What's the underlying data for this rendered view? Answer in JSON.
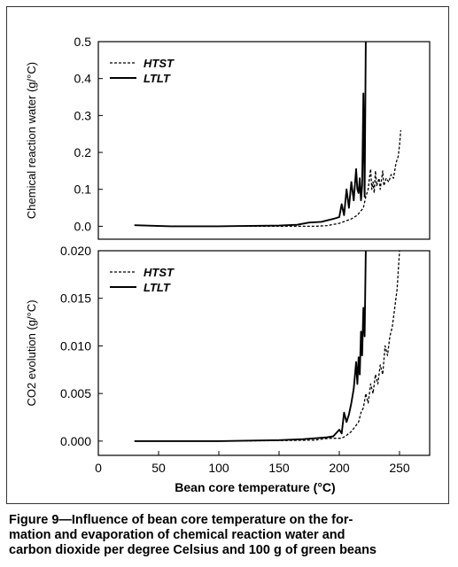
{
  "caption": {
    "line1": "Figure 9—Influence of bean core temperature on the for-",
    "line2": "mation and evaporation of chemical reaction water and",
    "line3": "carbon dioxide per degree Celsius and 100 g of green beans"
  },
  "colors": {
    "line": "#000000",
    "frame": "#333333"
  },
  "chart_data": [
    {
      "type": "line",
      "ylabel": "Chemical reaction water (g/°C)",
      "xlim": [
        0,
        275
      ],
      "ylim": [
        -0.035,
        0.5
      ],
      "yticks": [
        "0.0",
        "0.1",
        "0.2",
        "0.3",
        "0.4",
        "0.5"
      ],
      "ytick_values": [
        0.0,
        0.1,
        0.2,
        0.3,
        0.4,
        0.5
      ],
      "legend_position": "top-left",
      "series": [
        {
          "name": "HTST",
          "style": "dashed",
          "points": [
            [
              30,
              0.003
            ],
            [
              60,
              0.0
            ],
            [
              100,
              0.0
            ],
            [
              150,
              0.0
            ],
            [
              180,
              0.0
            ],
            [
              190,
              0.002
            ],
            [
              200,
              0.008
            ],
            [
              205,
              0.014
            ],
            [
              210,
              0.02
            ],
            [
              215,
              0.03
            ],
            [
              220,
              0.05
            ],
            [
              222,
              0.08
            ],
            [
              224,
              0.1
            ],
            [
              225,
              0.13
            ],
            [
              226,
              0.155
            ],
            [
              227,
              0.1
            ],
            [
              228,
              0.12
            ],
            [
              229,
              0.09
            ],
            [
              230,
              0.15
            ],
            [
              231,
              0.11
            ],
            [
              233,
              0.13
            ],
            [
              234,
              0.1
            ],
            [
              236,
              0.15
            ],
            [
              237,
              0.11
            ],
            [
              239,
              0.13
            ],
            [
              241,
              0.12
            ],
            [
              243,
              0.14
            ],
            [
              245,
              0.13
            ],
            [
              247,
              0.17
            ],
            [
              249,
              0.19
            ],
            [
              250,
              0.22
            ],
            [
              251,
              0.26
            ]
          ]
        },
        {
          "name": "LTLT",
          "style": "solid",
          "points": [
            [
              30,
              0.003
            ],
            [
              60,
              0.0
            ],
            [
              100,
              0.0
            ],
            [
              150,
              0.002
            ],
            [
              165,
              0.004
            ],
            [
              175,
              0.01
            ],
            [
              185,
              0.012
            ],
            [
              195,
              0.02
            ],
            [
              200,
              0.025
            ],
            [
              202,
              0.06
            ],
            [
              204,
              0.03
            ],
            [
              206,
              0.1
            ],
            [
              208,
              0.05
            ],
            [
              210,
              0.12
            ],
            [
              212,
              0.07
            ],
            [
              214,
              0.155
            ],
            [
              215,
              0.1
            ],
            [
              216,
              0.09
            ],
            [
              217,
              0.13
            ],
            [
              218,
              0.07
            ],
            [
              219,
              0.11
            ],
            [
              220,
              0.36
            ],
            [
              221,
              0.08
            ],
            [
              222,
              0.5
            ]
          ]
        }
      ]
    },
    {
      "type": "line",
      "ylabel": "CO2 evolution (g/°C)",
      "xlabel": "Bean core temperature (°C)",
      "xlim": [
        0,
        275
      ],
      "ylim": [
        -0.0015,
        0.02
      ],
      "xticks": [
        "0",
        "50",
        "100",
        "150",
        "200",
        "250"
      ],
      "xtick_values": [
        0,
        50,
        100,
        150,
        200,
        250
      ],
      "yticks": [
        "0.000",
        "0.005",
        "0.010",
        "0.015",
        "0.020"
      ],
      "ytick_values": [
        0.0,
        0.005,
        0.01,
        0.015,
        0.02
      ],
      "legend_position": "top-left",
      "series": [
        {
          "name": "HTST",
          "style": "dashed",
          "points": [
            [
              30,
              0.0
            ],
            [
              100,
              0.0
            ],
            [
              150,
              5e-05
            ],
            [
              180,
              0.0001
            ],
            [
              185,
              0.0002
            ],
            [
              192,
              0.0003
            ],
            [
              197,
              0.0003
            ],
            [
              202,
              0.0003
            ],
            [
              206,
              0.0006
            ],
            [
              210,
              0.001
            ],
            [
              213,
              0.0015
            ],
            [
              216,
              0.002
            ],
            [
              218,
              0.003
            ],
            [
              220,
              0.0035
            ],
            [
              222,
              0.005
            ],
            [
              224,
              0.004
            ],
            [
              226,
              0.006
            ],
            [
              228,
              0.005
            ],
            [
              230,
              0.007
            ],
            [
              232,
              0.006
            ],
            [
              234,
              0.008
            ],
            [
              236,
              0.007
            ],
            [
              238,
              0.01
            ],
            [
              240,
              0.009
            ],
            [
              242,
              0.011
            ],
            [
              244,
              0.012
            ],
            [
              246,
              0.014
            ],
            [
              248,
              0.016
            ],
            [
              250,
              0.02
            ]
          ]
        },
        {
          "name": "LTLT",
          "style": "solid",
          "points": [
            [
              30,
              0.0
            ],
            [
              100,
              0.0
            ],
            [
              150,
              0.0001
            ],
            [
              170,
              0.0002
            ],
            [
              180,
              0.0003
            ],
            [
              190,
              0.0004
            ],
            [
              195,
              0.0005
            ],
            [
              200,
              0.0012
            ],
            [
              202,
              0.0008
            ],
            [
              204,
              0.003
            ],
            [
              206,
              0.002
            ],
            [
              208,
              0.0028
            ],
            [
              210,
              0.004
            ],
            [
              212,
              0.0055
            ],
            [
              214,
              0.0083
            ],
            [
              215,
              0.006
            ],
            [
              216,
              0.0088
            ],
            [
              217,
              0.007
            ],
            [
              218,
              0.0115
            ],
            [
              219,
              0.009
            ],
            [
              220,
              0.014
            ],
            [
              221,
              0.011
            ],
            [
              222,
              0.02
            ]
          ]
        }
      ]
    }
  ]
}
